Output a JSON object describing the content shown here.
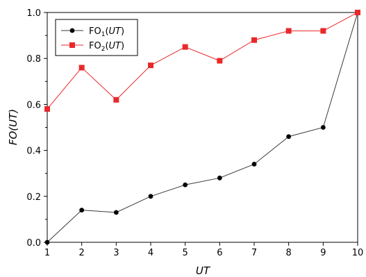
{
  "chart_data": {
    "type": "line",
    "xlabel": "UT",
    "ylabel": "FO(UT)",
    "x": [
      1,
      2,
      3,
      4,
      5,
      6,
      7,
      8,
      9,
      10
    ],
    "xlim": [
      1,
      10
    ],
    "ylim": [
      0,
      1
    ],
    "x_ticks": [
      "1",
      "2",
      "3",
      "4",
      "5",
      "6",
      "7",
      "8",
      "9",
      "10"
    ],
    "y_ticks": [
      "0.0",
      "0.2",
      "0.4",
      "0.6",
      "0.8",
      "1.0"
    ],
    "grid": false,
    "legend_position": "top-left",
    "series": [
      {
        "name": "FO",
        "name_subscript": "1",
        "name_arg": "UT",
        "color": "#3a3a3a",
        "marker_color": "#000000",
        "marker": "circle",
        "values": [
          0.0,
          0.14,
          0.13,
          0.2,
          0.25,
          0.28,
          0.34,
          0.46,
          0.5,
          1.0
        ]
      },
      {
        "name": "FO",
        "name_subscript": "2",
        "name_arg": "UT",
        "color": "#e8292b",
        "marker_color": "#e8292b",
        "marker": "square",
        "values": [
          0.58,
          0.76,
          0.62,
          0.77,
          0.85,
          0.79,
          0.88,
          0.92,
          0.92,
          1.0
        ]
      }
    ]
  }
}
